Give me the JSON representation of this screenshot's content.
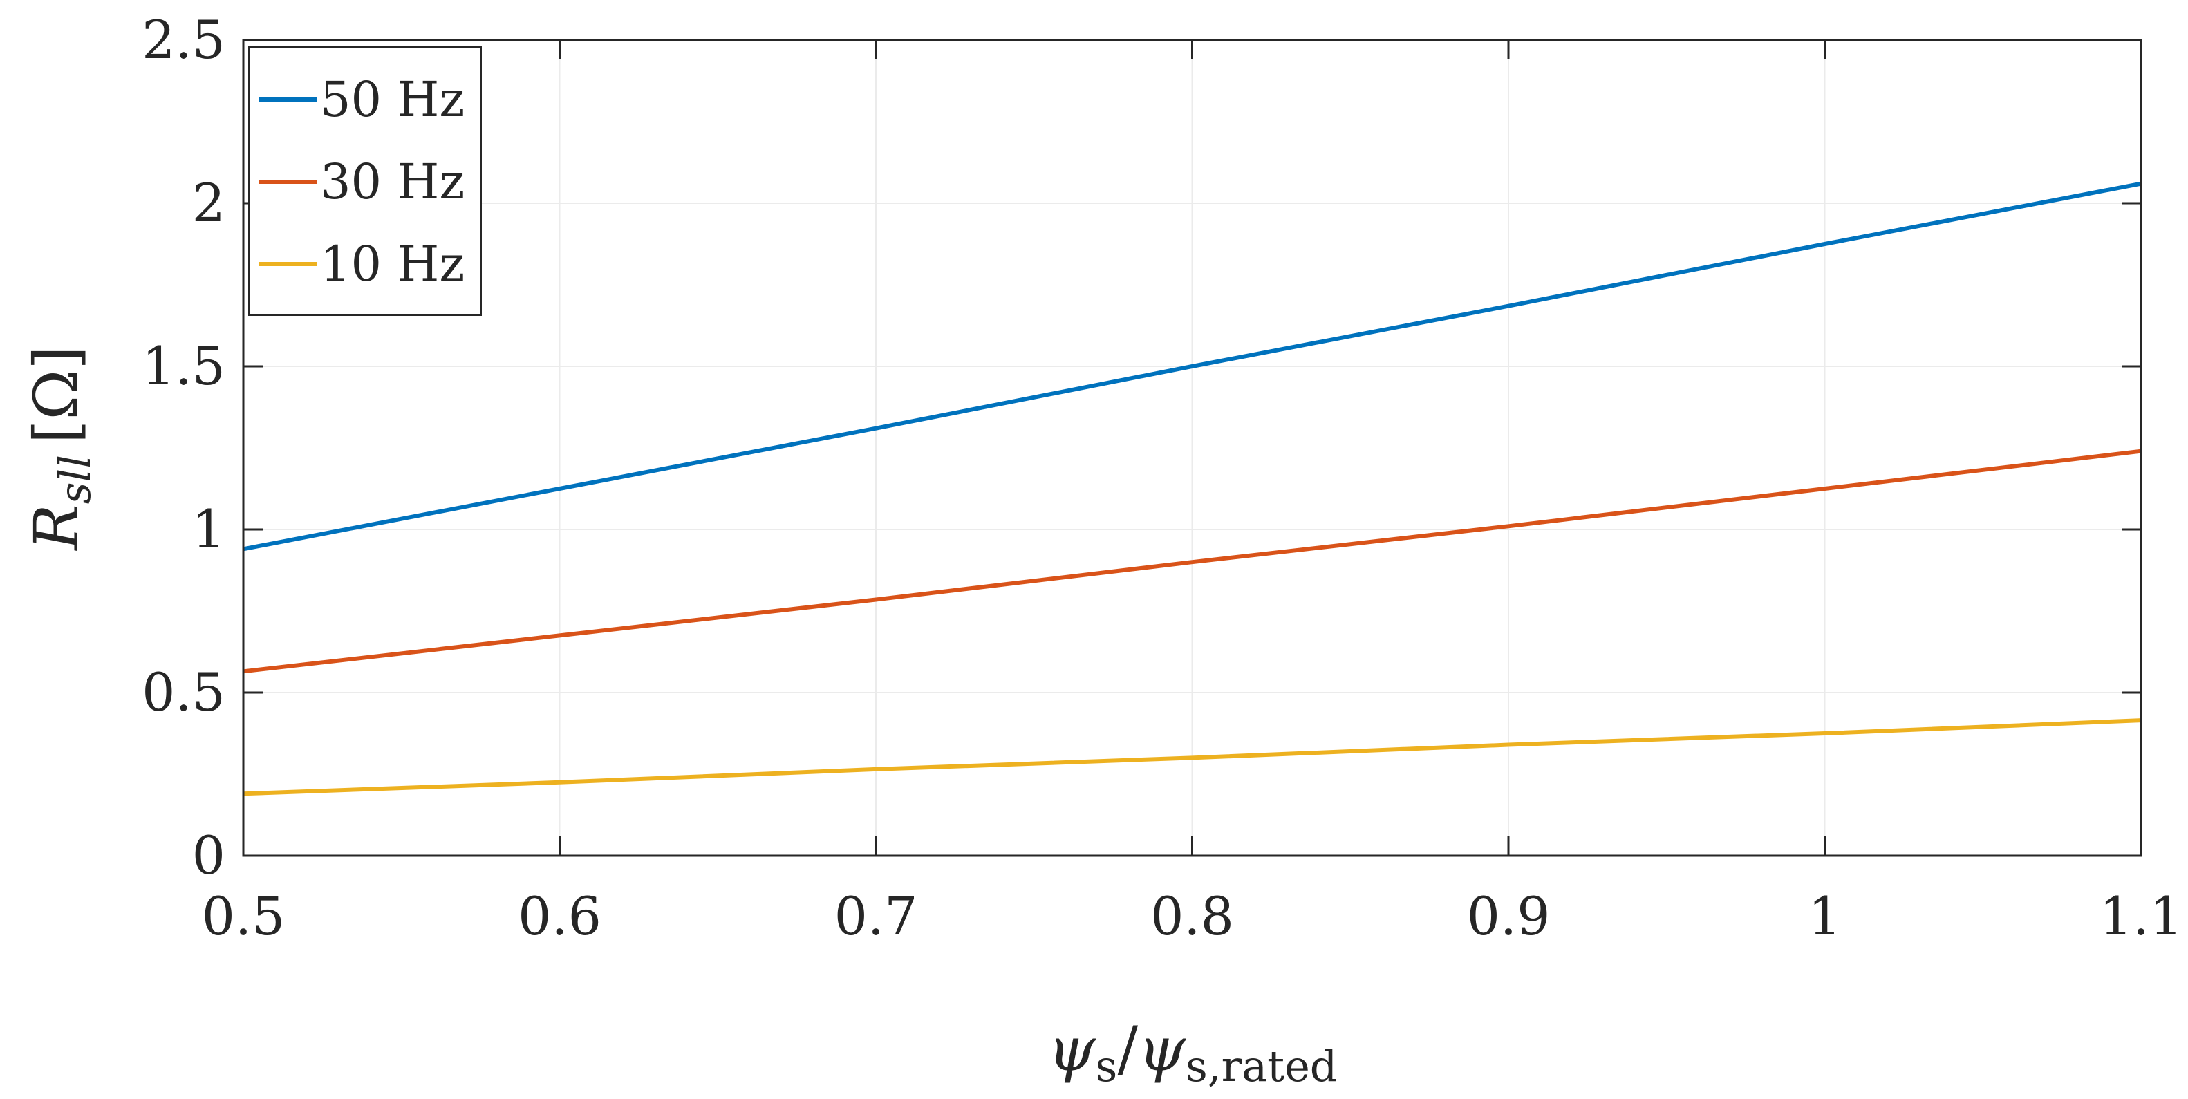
{
  "chart_data": {
    "type": "line",
    "title": "",
    "x": [
      0.5,
      0.6,
      0.7,
      0.8,
      0.9,
      1.0,
      1.1
    ],
    "xlim": [
      0.5,
      1.1
    ],
    "ylim": [
      0,
      2.5
    ],
    "xticks": [
      "0.5",
      "0.6",
      "0.7",
      "0.8",
      "0.9",
      "1",
      "1.1"
    ],
    "yticks": [
      "0",
      "0.5",
      "1",
      "1.5",
      "2",
      "2.5"
    ],
    "xlabel": {
      "psi1": "ψ",
      "sub1": "s",
      "slash": "/",
      "psi2": "ψ",
      "sub2": "s,rated"
    },
    "ylabel": {
      "main": "R",
      "sub": "sll",
      "unit": "[Ω]"
    },
    "grid": true,
    "legend_position": "top-left",
    "series": [
      {
        "name": "50 Hz",
        "color": "#0072BD",
        "values": [
          0.94,
          1.125,
          1.31,
          1.5,
          1.685,
          1.875,
          2.06
        ]
      },
      {
        "name": "30 Hz",
        "color": "#D95319",
        "values": [
          0.565,
          0.675,
          0.785,
          0.9,
          1.01,
          1.125,
          1.24
        ]
      },
      {
        "name": "10 Hz",
        "color": "#EDB120",
        "values": [
          0.19,
          0.225,
          0.265,
          0.3,
          0.34,
          0.375,
          0.415
        ]
      }
    ]
  }
}
